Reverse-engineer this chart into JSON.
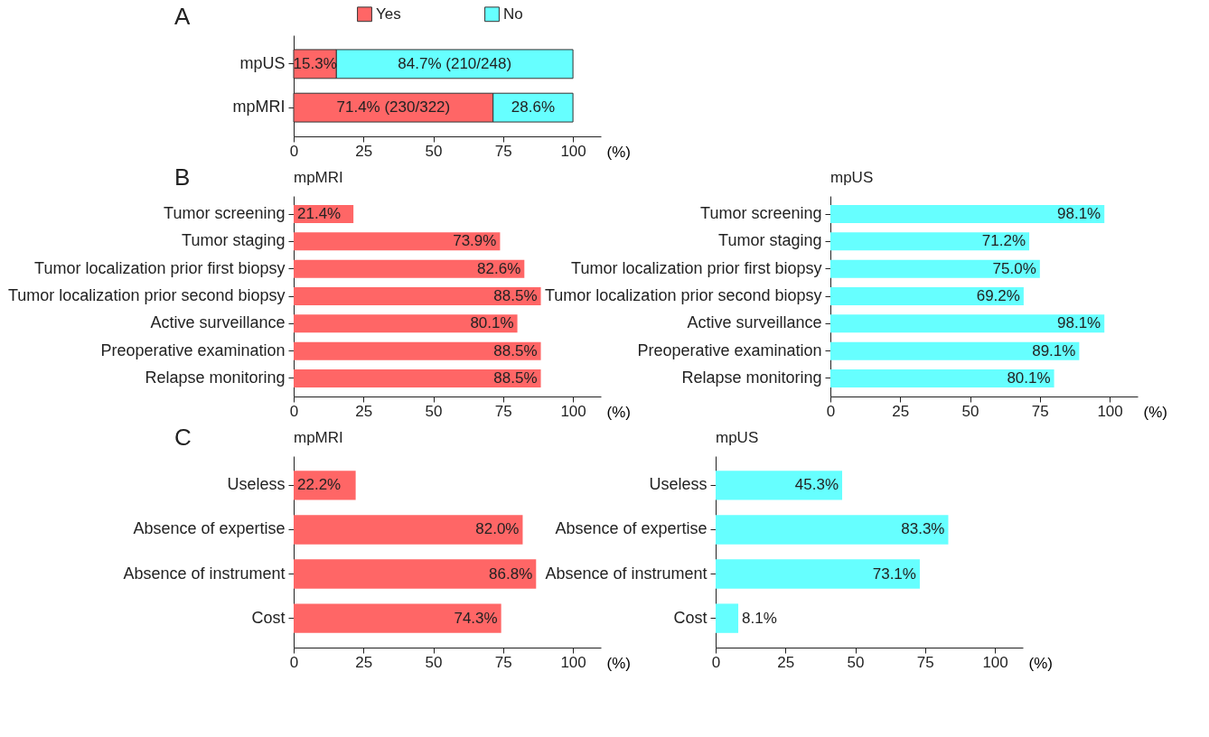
{
  "chart_data": [
    {
      "type": "bar",
      "orientation": "horizontal",
      "stacked": true,
      "annotations": [
        "A"
      ],
      "categories": [
        "mpUS",
        "mpMRI"
      ],
      "series": [
        {
          "name": "Yes",
          "color": "#ff6666",
          "values": [
            15.3,
            71.4
          ],
          "value_labels": [
            "15.3%",
            "71.4% (230/322)"
          ]
        },
        {
          "name": "No",
          "color": "#66ffff",
          "values": [
            84.7,
            28.6
          ],
          "value_labels": [
            "84.7% (210/248)",
            "28.6%"
          ]
        }
      ],
      "xlim": [
        0,
        110
      ],
      "xticks": [
        0,
        25,
        50,
        75,
        100
      ],
      "xlabel": "(%)",
      "legend": "top"
    },
    {
      "type": "bar",
      "orientation": "horizontal",
      "title": "mpMRI",
      "annotations": [
        "B"
      ],
      "categories": [
        "Tumor screening",
        "Tumor staging",
        "Tumor localization prior first biopsy",
        "Tumor localization prior second biopsy",
        "Active surveillance",
        "Preoperative examination",
        "Relapse monitoring"
      ],
      "color": "#ff6666",
      "values": [
        21.4,
        73.9,
        82.6,
        88.5,
        80.1,
        88.5,
        88.5
      ],
      "value_labels": [
        "21.4%",
        "73.9%",
        "82.6%",
        "88.5%",
        "80.1%",
        "88.5%",
        "88.5%"
      ],
      "xlim": [
        0,
        110
      ],
      "xticks": [
        0,
        25,
        50,
        75,
        100
      ],
      "xlabel": "(%)"
    },
    {
      "type": "bar",
      "orientation": "horizontal",
      "title": "mpUS",
      "categories": [
        "Tumor screening",
        "Tumor staging",
        "Tumor localization prior first biopsy",
        "Tumor localization prior second biopsy",
        "Active surveillance",
        "Preoperative examination",
        "Relapse monitoring"
      ],
      "color": "#66ffff",
      "values": [
        98.1,
        71.2,
        75.0,
        69.2,
        98.1,
        89.1,
        80.1
      ],
      "value_labels": [
        "98.1%",
        "71.2%",
        "75.0%",
        "69.2%",
        "98.1%",
        "89.1%",
        "80.1%"
      ],
      "xlim": [
        0,
        110
      ],
      "xticks": [
        0,
        25,
        50,
        75,
        100
      ],
      "xlabel": "(%)"
    },
    {
      "type": "bar",
      "orientation": "horizontal",
      "title": "mpMRI",
      "annotations": [
        "C"
      ],
      "categories": [
        "Useless",
        "Absence of expertise",
        "Absence of instrument",
        "Cost"
      ],
      "color": "#ff6666",
      "values": [
        22.2,
        82.0,
        86.8,
        74.3
      ],
      "value_labels": [
        "22.2%",
        "82.0%",
        "86.8%",
        "74.3%"
      ],
      "xlim": [
        0,
        110
      ],
      "xticks": [
        0,
        25,
        50,
        75,
        100
      ],
      "xlabel": "(%)"
    },
    {
      "type": "bar",
      "orientation": "horizontal",
      "title": "mpUS",
      "categories": [
        "Useless",
        "Absence of expertise",
        "Absence of instrument",
        "Cost"
      ],
      "color": "#66ffff",
      "values": [
        45.3,
        83.3,
        73.1,
        8.1
      ],
      "value_labels": [
        "45.3%",
        "83.3%",
        "73.1%",
        "8.1%"
      ],
      "xlim": [
        0,
        110
      ],
      "xticks": [
        0,
        25,
        50,
        75,
        100
      ],
      "xlabel": "(%)"
    }
  ]
}
